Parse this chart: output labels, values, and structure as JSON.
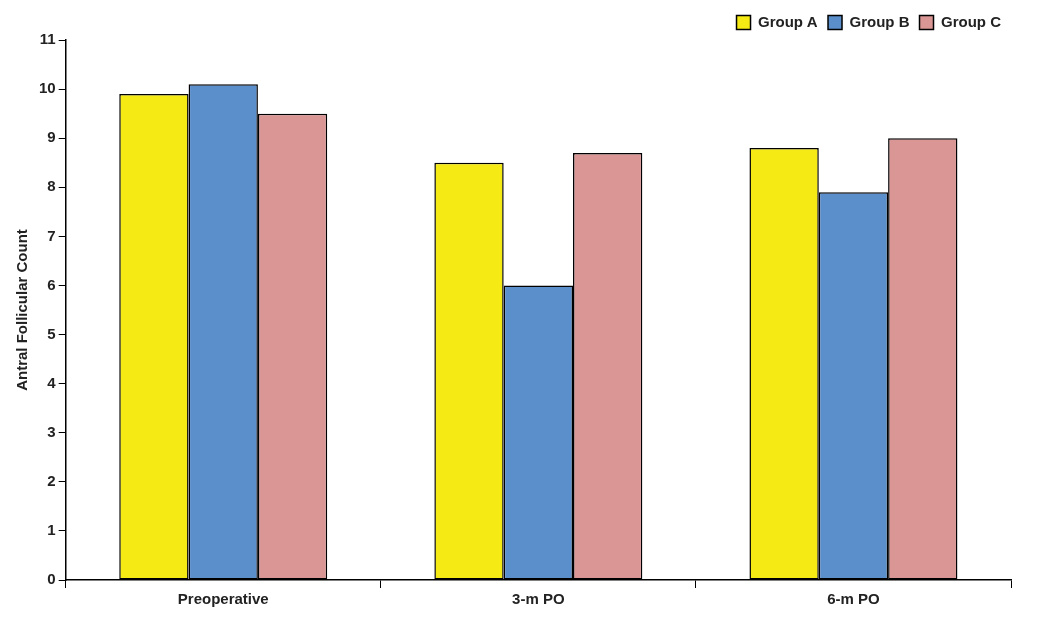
{
  "chart_data": {
    "type": "bar",
    "ylabel": "Antral Follicular Count",
    "categories": [
      "Preoperative",
      "3-m PO",
      "6-m PO"
    ],
    "series": [
      {
        "name": "Group A",
        "color": "#f5ea14",
        "values": [
          9.9,
          8.5,
          8.8
        ]
      },
      {
        "name": "Group B",
        "color": "#5b8fcb",
        "values": [
          10.1,
          6.0,
          7.9
        ]
      },
      {
        "name": "Group C",
        "color": "#d99694",
        "values": [
          9.5,
          8.7,
          9.0
        ]
      }
    ],
    "ylim": [
      0,
      11
    ],
    "yticks": [
      0,
      1,
      2,
      3,
      4,
      5,
      6,
      7,
      8,
      9,
      10,
      11
    ],
    "grid": false,
    "legend": "top right"
  }
}
